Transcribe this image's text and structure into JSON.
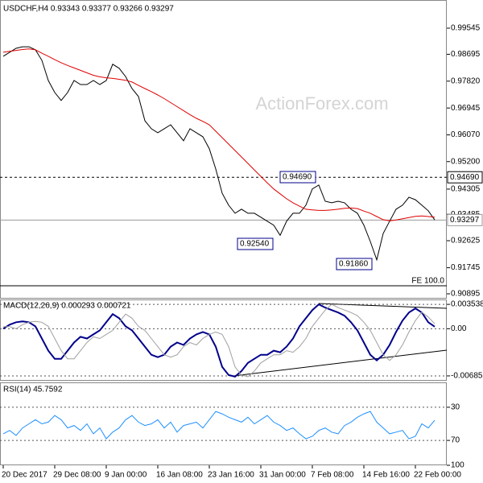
{
  "chart_data": [
    {
      "type": "line",
      "title": "USDCHF,H4 0.93343 0.93377 0.93266 0.93297",
      "watermark": "ActionForex.com",
      "note": "FE 100.0",
      "series": [
        {
          "color": "#000000",
          "values": [
            0.9863,
            0.9876,
            0.9889,
            0.9894,
            0.9894,
            0.9884,
            0.985,
            0.9784,
            0.9745,
            0.9719,
            0.9745,
            0.9784,
            0.9771,
            0.9771,
            0.9784,
            0.9771,
            0.9784,
            0.9837,
            0.9824,
            0.9797,
            0.9758,
            0.9732,
            0.9653,
            0.9627,
            0.9614,
            0.9627,
            0.964,
            0.9614,
            0.9588,
            0.9627,
            0.9614,
            0.9601,
            0.9562,
            0.9496,
            0.9417,
            0.9378,
            0.9352,
            0.9365,
            0.9352,
            0.9352,
            0.9339,
            0.9326,
            0.9313,
            0.928,
            0.9326,
            0.9352,
            0.9352,
            0.9378,
            0.9431,
            0.9444,
            0.9391,
            0.9386,
            0.9391,
            0.9386,
            0.9365,
            0.9352,
            0.9313,
            0.926,
            0.92,
            0.9286,
            0.9326,
            0.9365,
            0.9378,
            0.9404,
            0.9396,
            0.9378,
            0.936,
            0.933
          ]
        },
        {
          "color": "#e00000",
          "values": [
            0.9876,
            0.9879,
            0.9882,
            0.9885,
            0.9887,
            0.9884,
            0.9873,
            0.9863,
            0.9852,
            0.9842,
            0.9833,
            0.9825,
            0.9817,
            0.9809,
            0.9801,
            0.9796,
            0.9793,
            0.9791,
            0.9788,
            0.9785,
            0.9779,
            0.9768,
            0.9758,
            0.9748,
            0.9737,
            0.9725,
            0.9712,
            0.9699,
            0.9686,
            0.9673,
            0.9661,
            0.9651,
            0.964,
            0.9619,
            0.9598,
            0.9577,
            0.9556,
            0.9535,
            0.9514,
            0.9493,
            0.9472,
            0.9451,
            0.9431,
            0.9415,
            0.9399,
            0.9386,
            0.9375,
            0.9365,
            0.9363,
            0.9361,
            0.9361,
            0.9363,
            0.9365,
            0.9368,
            0.9369,
            0.9367,
            0.9359,
            0.9352,
            0.9341,
            0.9331,
            0.9327,
            0.933,
            0.9334,
            0.9338,
            0.9342,
            0.9343,
            0.9341,
            0.9339
          ]
        }
      ],
      "ylim": [
        1.00462,
        0.90764
      ],
      "yticks": [
        0.99545,
        0.98695,
        {
          "value": 0.9782,
          "label": "0.97820"
        },
        0.96945,
        {
          "value": 0.9607,
          "label": "0.96070"
        },
        {
          "value": 0.952,
          "label": "0.95200"
        },
        0.94305,
        0.93485,
        0.92625,
        0.91745,
        0.90895
      ],
      "levels": [
        {
          "value": 0.9469,
          "label": "0.94690",
          "color": "#000000",
          "style": "dashed"
        },
        {
          "value": 0.93297,
          "label": "0.93297",
          "color": "#999999",
          "style": "solid"
        }
      ],
      "annotations": [
        {
          "value": 0.9469,
          "label": "0.94690"
        },
        {
          "value": 0.9254,
          "label": "0.92540"
        },
        {
          "value": 0.9186,
          "label": "0.91860"
        }
      ],
      "grid": false
    },
    {
      "type": "line",
      "title": "MACD(12,26,9) 0.000293 0.000721",
      "series": [
        {
          "color": "#00008b",
          "values": [
            0,
            0.00059,
            0.00094,
            0.00106,
            0.00094,
            0.00035,
            -0.00142,
            -0.00319,
            -0.00437,
            -0.00437,
            -0.00319,
            -0.00201,
            -0.00118,
            -0.00142,
            -0.00083,
            -0.00024,
            0.00094,
            0.00212,
            0.00153,
            0.00035,
            -0.00024,
            -0.00142,
            -0.0026,
            -0.00378,
            -0.00413,
            -0.00378,
            -0.0026,
            -0.00201,
            -0.00236,
            -0.00142,
            -0.00083,
            -0.00047,
            -0.00083,
            -0.0026,
            -0.00555,
            -0.00673,
            -0.00696,
            -0.00614,
            -0.00496,
            -0.00437,
            -0.00378,
            -0.00378,
            -0.00319,
            -0.00342,
            -0.0026,
            -0.00142,
            0.00035,
            0.00153,
            0.00271,
            0.00354,
            0.00307,
            0.00271,
            0.00236,
            0.00189,
            0.00094,
            -0.00024,
            -0.00201,
            -0.00378,
            -0.0046,
            -0.00378,
            -0.00236,
            -0.00047,
            0.00118,
            0.00236,
            0.00295,
            0.00236,
            0.00094,
            0.000293
          ]
        },
        {
          "color": "#a0a0a0",
          "values": [
            0.0003,
            0.0003,
            0,
            0.00059,
            0.00094,
            0.00106,
            0.00094,
            0.00035,
            -0.00142,
            -0.00319,
            -0.00437,
            -0.00437,
            -0.00319,
            -0.00201,
            -0.00118,
            -0.00142,
            -0.00083,
            -0.00024,
            0.00094,
            0.00212,
            0.00153,
            0.00035,
            -0.00024,
            -0.00142,
            -0.0026,
            -0.00378,
            -0.00413,
            -0.00378,
            -0.0026,
            -0.00201,
            -0.00236,
            -0.00142,
            -0.00083,
            -0.00047,
            -0.00083,
            -0.0026,
            -0.00555,
            -0.00673,
            -0.00696,
            -0.00614,
            -0.00496,
            -0.00437,
            -0.00378,
            -0.00378,
            -0.00319,
            -0.00342,
            -0.0026,
            -0.00142,
            0.00035,
            0.00153,
            0.00271,
            0.00354,
            0.00307,
            0.00271,
            0.00236,
            0.00189,
            0.00094,
            -0.00024,
            -0.00201,
            -0.00378,
            -0.0046,
            -0.00378,
            -0.00236,
            -0.00047,
            0.00118,
            0.0024,
            0.0017,
            0.000721
          ]
        }
      ],
      "ylim": [
        0.00425,
        -0.00756
      ],
      "yticks": [
        0.003538,
        {
          "value": 0,
          "label": "0.00"
        },
        -0.006853
      ],
      "grid": true
    },
    {
      "type": "line",
      "title": "RSI(14) 45.7592",
      "categories": [
        "20 Dec 2017",
        null,
        null,
        null,
        null,
        null,
        null,
        null,
        "29 Dec 08:00",
        null,
        null,
        null,
        null,
        null,
        null,
        null,
        "9 Jan 00:00",
        null,
        null,
        null,
        null,
        null,
        null,
        null,
        "16 Jan 08:00",
        null,
        null,
        null,
        null,
        null,
        null,
        null,
        "23 Jan 16:00",
        null,
        null,
        null,
        null,
        null,
        null,
        null,
        "31 Jan 00:00",
        null,
        null,
        null,
        null,
        null,
        null,
        null,
        "7 Feb 08:00",
        null,
        null,
        null,
        null,
        null,
        null,
        null,
        "14 Feb 16:00",
        null,
        null,
        null,
        null,
        null,
        null,
        null,
        "22 Feb 00:00",
        null,
        null,
        null
      ],
      "series": [
        {
          "color": "#1e90ff",
          "values": [
            62,
            58,
            64,
            55,
            50,
            45,
            50,
            48,
            40,
            45,
            55,
            52,
            58,
            50,
            62,
            55,
            68,
            60,
            55,
            45,
            40,
            48,
            52,
            50,
            45,
            55,
            48,
            60,
            52,
            50,
            48,
            55,
            45,
            35,
            38,
            42,
            45,
            48,
            42,
            50,
            45,
            40,
            48,
            52,
            58,
            55,
            62,
            68,
            65,
            58,
            55,
            60,
            62,
            52,
            48,
            42,
            38,
            35,
            48,
            55,
            62,
            60,
            58,
            68,
            65,
            50,
            55,
            45.7592
          ]
        }
      ],
      "ylim": [
        0,
        100
      ],
      "yticks": [
        100,
        70,
        30
      ],
      "grid": true
    }
  ]
}
